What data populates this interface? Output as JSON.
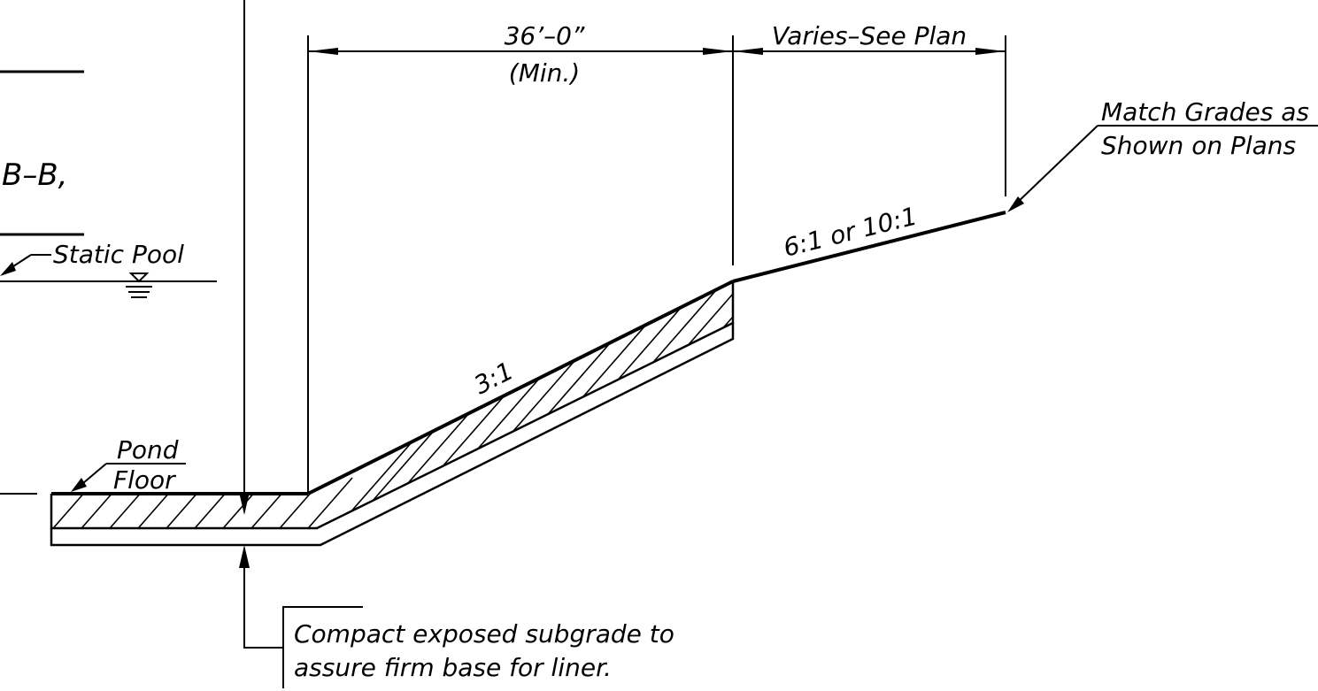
{
  "labels": {
    "section_mark": "B–B,",
    "static_pool": "Static Pool",
    "dim_top": "36’–0”",
    "dim_top_note": "(Min.)",
    "dim_varies": "Varies–See Plan",
    "match_grades_line1": "Match Grades as",
    "match_grades_line2": "Shown on Plans",
    "slope_upper": "6:1 or 10:1",
    "slope_lower": "3:1",
    "pond_line1": "Pond",
    "pond_line2": "Floor",
    "compact_line1": "Compact exposed subgrade to",
    "compact_line2": "assure firm base for liner."
  },
  "colors": {
    "ink": "#000000",
    "paper": "#ffffff"
  }
}
